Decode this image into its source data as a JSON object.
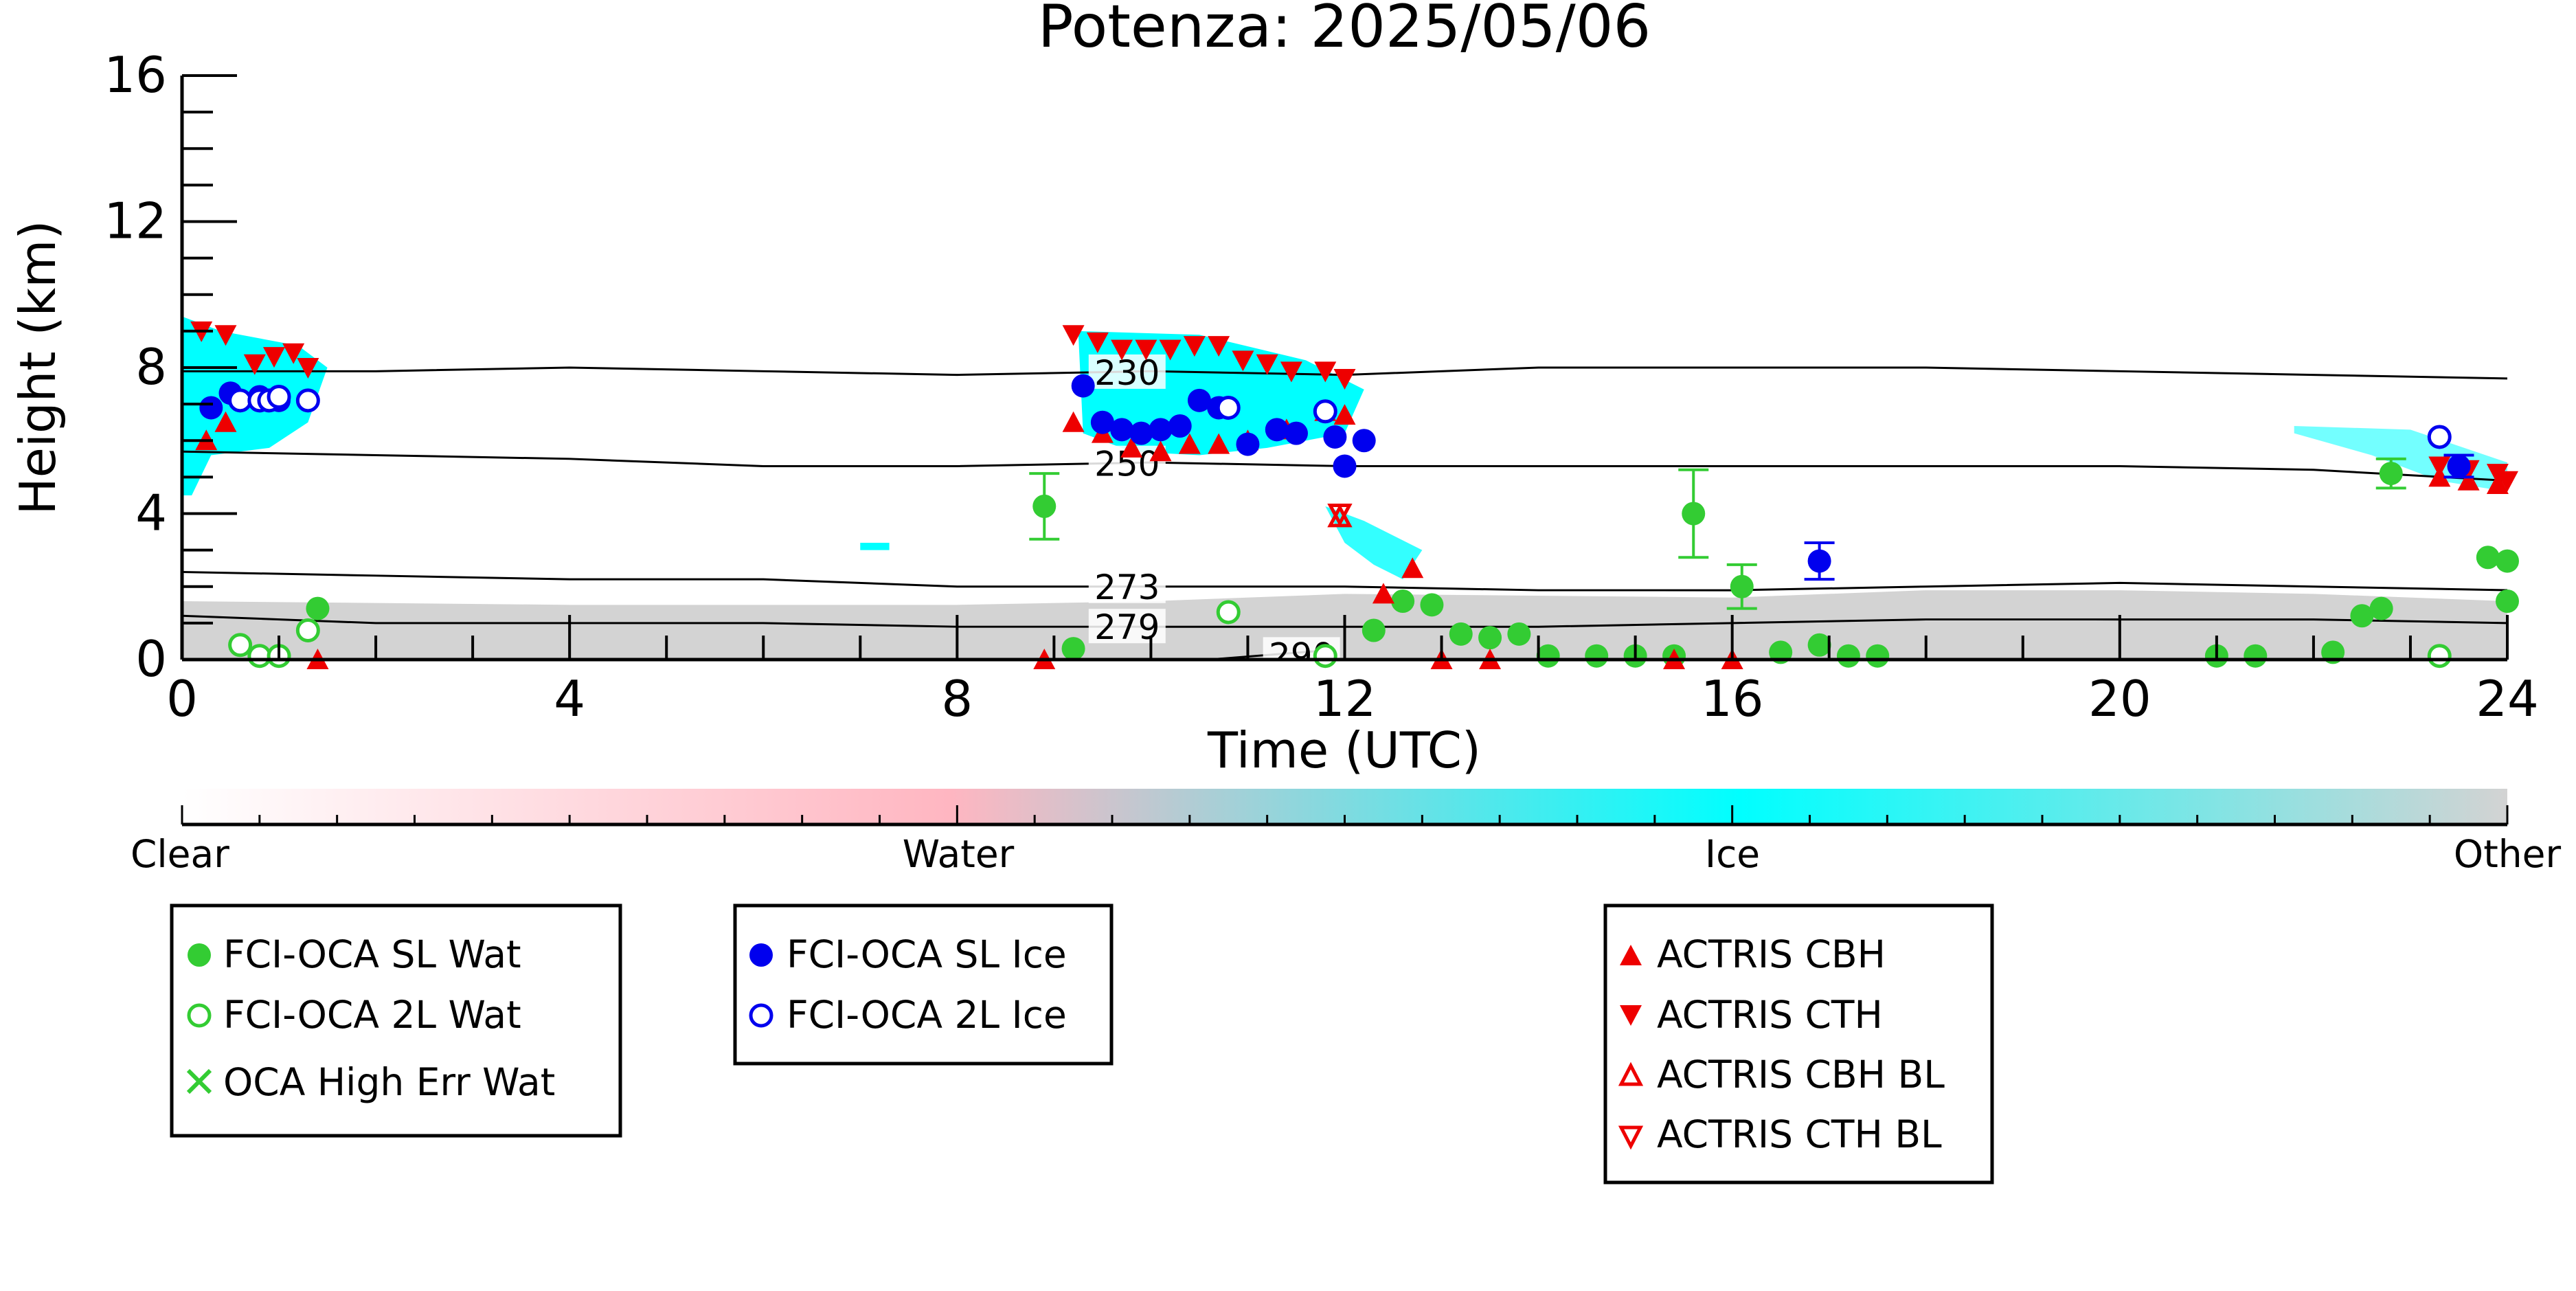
{
  "chart_data": {
    "type": "scatter",
    "title": "Potenza: 2025/05/06",
    "xlabel": "Time (UTC)",
    "ylabel": "Height (km)",
    "xlim": [
      0,
      24
    ],
    "ylim": [
      0,
      16
    ],
    "xticks": [
      0,
      4,
      8,
      12,
      16,
      20,
      24
    ],
    "yticks": [
      0,
      4,
      8,
      12,
      16
    ],
    "colorbar": {
      "labels": [
        "Clear",
        "Water",
        "Ice",
        "Other"
      ],
      "colors": [
        "#ffffff",
        "#ffb6c1",
        "#00ffff",
        "#d3d3d3"
      ]
    },
    "isotherms": [
      {
        "label": "230",
        "label_x": 9.4,
        "points": [
          [
            0,
            7.9
          ],
          [
            2,
            7.9
          ],
          [
            4,
            8.0
          ],
          [
            6,
            7.9
          ],
          [
            8,
            7.8
          ],
          [
            10,
            7.9
          ],
          [
            12,
            7.8
          ],
          [
            14,
            8.0
          ],
          [
            16,
            8.0
          ],
          [
            18,
            8.0
          ],
          [
            20,
            7.9
          ],
          [
            22,
            7.8
          ],
          [
            24,
            7.7
          ]
        ]
      },
      {
        "label": "250",
        "label_x": 9.4,
        "points": [
          [
            0,
            5.7
          ],
          [
            2,
            5.6
          ],
          [
            4,
            5.5
          ],
          [
            6,
            5.3
          ],
          [
            8,
            5.3
          ],
          [
            10,
            5.4
          ],
          [
            12,
            5.3
          ],
          [
            14,
            5.3
          ],
          [
            16,
            5.3
          ],
          [
            18,
            5.3
          ],
          [
            20,
            5.3
          ],
          [
            22,
            5.2
          ],
          [
            24,
            4.9
          ]
        ]
      },
      {
        "label": "273",
        "label_x": 9.4,
        "points": [
          [
            0,
            2.4
          ],
          [
            2,
            2.3
          ],
          [
            4,
            2.2
          ],
          [
            6,
            2.2
          ],
          [
            8,
            2.0
          ],
          [
            10,
            2.0
          ],
          [
            12,
            2.0
          ],
          [
            14,
            1.9
          ],
          [
            16,
            1.9
          ],
          [
            18,
            2.0
          ],
          [
            20,
            2.1
          ],
          [
            22,
            2.0
          ],
          [
            24,
            1.9
          ]
        ]
      },
      {
        "label": "279",
        "label_x": 9.4,
        "points": [
          [
            0,
            1.2
          ],
          [
            2,
            1.0
          ],
          [
            4,
            1.0
          ],
          [
            6,
            1.0
          ],
          [
            8,
            0.9
          ],
          [
            10,
            0.9
          ],
          [
            12,
            0.9
          ],
          [
            14,
            0.9
          ],
          [
            16,
            1.0
          ],
          [
            18,
            1.1
          ],
          [
            20,
            1.1
          ],
          [
            22,
            1.1
          ],
          [
            24,
            1.0
          ]
        ]
      },
      {
        "label": "290",
        "label_x": 11.2,
        "points": [
          [
            10.6,
            0.0
          ],
          [
            11.8,
            0.25
          ]
        ]
      }
    ],
    "series": [
      {
        "name": "FCI-OCA SL Wat",
        "marker": "filled-circle",
        "color": "#33cc33",
        "points": [
          [
            1.4,
            1.4
          ],
          [
            8.9,
            4.2
          ],
          [
            9.2,
            0.3
          ],
          [
            12.3,
            0.8
          ],
          [
            12.6,
            1.6
          ],
          [
            12.9,
            1.5
          ],
          [
            13.2,
            0.7
          ],
          [
            13.5,
            0.6
          ],
          [
            13.8,
            0.7
          ],
          [
            14.1,
            0.1
          ],
          [
            14.6,
            0.1
          ],
          [
            15.0,
            0.1
          ],
          [
            15.4,
            0.1
          ],
          [
            15.6,
            4.0
          ],
          [
            16.1,
            2.0
          ],
          [
            16.5,
            0.2
          ],
          [
            16.9,
            0.4
          ],
          [
            17.2,
            0.1
          ],
          [
            17.5,
            0.1
          ],
          [
            21.0,
            0.1
          ],
          [
            21.4,
            0.1
          ],
          [
            22.2,
            0.2
          ],
          [
            22.5,
            1.2
          ],
          [
            22.7,
            1.4
          ],
          [
            22.8,
            5.1
          ],
          [
            23.8,
            2.8
          ],
          [
            24.0,
            2.7
          ],
          [
            24.0,
            1.6
          ]
        ],
        "errors": [
          [
            8.9,
            0.9
          ],
          [
            15.6,
            1.2
          ],
          [
            16.1,
            0.6
          ],
          [
            22.8,
            0.4
          ]
        ]
      },
      {
        "name": "FCI-OCA 2L Wat",
        "marker": "open-circle",
        "color": "#33cc33",
        "points": [
          [
            0.6,
            0.4
          ],
          [
            0.8,
            0.1
          ],
          [
            1.0,
            0.1
          ],
          [
            1.3,
            0.8
          ],
          [
            10.8,
            1.3
          ],
          [
            11.8,
            0.1
          ],
          [
            23.3,
            0.1
          ]
        ]
      },
      {
        "name": "OCA High Err Wat",
        "marker": "x",
        "color": "#33cc33",
        "points": []
      },
      {
        "name": "FCI-OCA SL Ice",
        "marker": "filled-circle",
        "color": "#0000ee",
        "points": [
          [
            0.3,
            6.9
          ],
          [
            0.5,
            7.3
          ],
          [
            0.8,
            7.2
          ],
          [
            1.0,
            7.1
          ],
          [
            9.3,
            7.5
          ],
          [
            9.5,
            6.5
          ],
          [
            9.7,
            6.3
          ],
          [
            9.9,
            6.2
          ],
          [
            10.1,
            6.3
          ],
          [
            10.3,
            6.4
          ],
          [
            10.5,
            7.1
          ],
          [
            10.7,
            6.9
          ],
          [
            11.0,
            5.9
          ],
          [
            11.3,
            6.3
          ],
          [
            11.5,
            6.2
          ],
          [
            11.9,
            6.1
          ],
          [
            12.0,
            5.3
          ],
          [
            12.2,
            6.0
          ],
          [
            16.9,
            2.7
          ],
          [
            23.5,
            5.3
          ]
        ],
        "errors": [
          [
            16.9,
            0.5
          ],
          [
            23.5,
            0.3
          ]
        ]
      },
      {
        "name": "FCI-OCA 2L Ice",
        "marker": "open-circle",
        "color": "#0000ee",
        "points": [
          [
            0.6,
            7.1
          ],
          [
            0.8,
            7.1
          ],
          [
            0.9,
            7.1
          ],
          [
            1.0,
            7.2
          ],
          [
            1.3,
            7.1
          ],
          [
            10.8,
            6.9
          ],
          [
            11.8,
            6.8
          ],
          [
            23.3,
            6.1
          ]
        ]
      },
      {
        "name": "ACTRIS CBH",
        "marker": "triangle-up",
        "color": "#ee0000",
        "points": [
          [
            0.25,
            6.0
          ],
          [
            0.45,
            6.5
          ],
          [
            9.2,
            6.5
          ],
          [
            9.5,
            6.2
          ],
          [
            9.8,
            5.8
          ],
          [
            10.1,
            5.7
          ],
          [
            10.4,
            5.9
          ],
          [
            10.7,
            5.9
          ],
          [
            11.0,
            6.0
          ],
          [
            11.4,
            6.3
          ],
          [
            11.8,
            6.8
          ],
          [
            12.0,
            6.7
          ],
          [
            12.7,
            2.5
          ],
          [
            12.4,
            1.8
          ],
          [
            23.3,
            5.0
          ],
          [
            23.6,
            4.9
          ],
          [
            23.9,
            4.8
          ],
          [
            8.9,
            0.0
          ],
          [
            13.0,
            0.0
          ],
          [
            13.5,
            0.0
          ],
          [
            15.4,
            0.0
          ],
          [
            16.0,
            0.0
          ],
          [
            1.4,
            0.0
          ]
        ]
      },
      {
        "name": "ACTRIS CTH",
        "marker": "triangle-down",
        "color": "#ee0000",
        "points": [
          [
            0.2,
            9.0
          ],
          [
            0.45,
            8.9
          ],
          [
            0.75,
            8.1
          ],
          [
            0.95,
            8.3
          ],
          [
            1.15,
            8.4
          ],
          [
            1.3,
            8.0
          ],
          [
            9.2,
            8.9
          ],
          [
            9.45,
            8.7
          ],
          [
            9.7,
            8.5
          ],
          [
            9.95,
            8.5
          ],
          [
            10.2,
            8.5
          ],
          [
            10.45,
            8.6
          ],
          [
            10.7,
            8.6
          ],
          [
            10.95,
            8.2
          ],
          [
            11.2,
            8.1
          ],
          [
            11.45,
            7.9
          ],
          [
            11.8,
            7.9
          ],
          [
            12.0,
            7.7
          ],
          [
            23.3,
            5.3
          ],
          [
            23.6,
            5.2
          ],
          [
            23.9,
            5.1
          ],
          [
            24.0,
            4.9
          ]
        ]
      },
      {
        "name": "ACTRIS CBH BL",
        "marker": "open-triangle-up",
        "color": "#ee0000",
        "points": [
          [
            11.95,
            3.9
          ]
        ]
      },
      {
        "name": "ACTRIS CTH BL",
        "marker": "open-triangle-down",
        "color": "#ee0000",
        "points": [
          [
            11.95,
            4.0
          ]
        ]
      }
    ]
  },
  "legend": {
    "wat": [
      "FCI-OCA SL Wat",
      "FCI-OCA 2L Wat",
      "OCA High Err Wat"
    ],
    "ice": [
      "FCI-OCA SL Ice",
      "FCI-OCA 2L Ice"
    ],
    "actris": [
      "ACTRIS CBH",
      "ACTRIS CTH",
      "ACTRIS CBH BL",
      "ACTRIS CTH BL"
    ]
  }
}
